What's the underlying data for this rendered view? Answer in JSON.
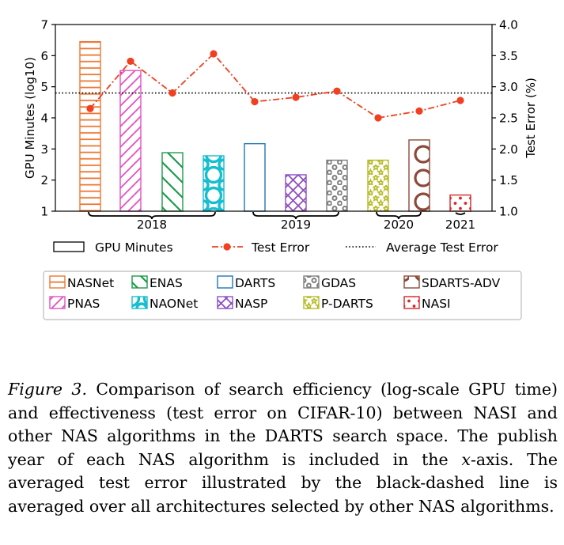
{
  "chart_data": {
    "type": "bar",
    "categories": [
      "NASNet",
      "PNAS",
      "ENAS",
      "NAONet",
      "DARTS",
      "NASP",
      "GDAS",
      "P-DARTS",
      "SDARTS-ADV",
      "NASI"
    ],
    "series": [
      {
        "name": "GPU Minutes",
        "axis": "left",
        "values": [
          6.45,
          5.52,
          2.88,
          2.78,
          3.17,
          2.17,
          2.64,
          2.64,
          3.29,
          1.52
        ]
      },
      {
        "name": "Test Error",
        "axis": "right",
        "type": "line",
        "values": [
          2.65,
          3.41,
          2.9,
          3.53,
          2.76,
          2.83,
          2.93,
          2.5,
          2.61,
          2.78
        ]
      }
    ],
    "average_test_error": 2.9,
    "average_label": "Average Test Error",
    "ylabel": "GPU Minutes (log10)",
    "y2label": "Test Error (%)",
    "ylim": [
      1,
      7
    ],
    "y2lim": [
      1.0,
      4.0
    ],
    "yticks": [
      "1",
      "2",
      "3",
      "4",
      "5",
      "6",
      "7"
    ],
    "y2ticks": [
      "1.0",
      "1.5",
      "2.0",
      "2.5",
      "3.0",
      "3.5",
      "4.0"
    ],
    "year_groups": [
      {
        "label": "2018",
        "from": 0,
        "to": 3
      },
      {
        "label": "2019",
        "from": 4,
        "to": 6
      },
      {
        "label": "2020",
        "from": 7,
        "to": 8
      },
      {
        "label": "2021",
        "from": 9,
        "to": 9
      }
    ],
    "colors": {
      "NASNet": "#ee7733",
      "PNAS": "#e44fc2",
      "ENAS": "#1e9a4a",
      "NAONet": "#17becf",
      "DARTS": "#1f77b4",
      "NASP": "#8c4fc0",
      "GDAS": "#7f7f7f",
      "P-DARTS": "#b8bc2a",
      "SDARTS-ADV": "#8c4a3a",
      "NASI": "#d62728",
      "line": "#f04020"
    },
    "patterns": {
      "NASNet": "horizontal-lines",
      "PNAS": "diagonal-lines",
      "ENAS": "back-diagonal-lines",
      "NAONet": "large-circles",
      "DARTS": "none",
      "NASP": "crosshatch",
      "GDAS": "small-circles",
      "P-DARTS": "stars",
      "SDARTS-ADV": "big-rings",
      "NASI": "dots"
    },
    "legend_top": [
      {
        "label": "GPU Minutes",
        "kind": "box"
      },
      {
        "label": "Test Error",
        "kind": "line-marker"
      },
      {
        "label": "Average Test Error",
        "kind": "dotted"
      }
    ]
  },
  "caption": {
    "label": "Figure 3.",
    "text_1": " Comparison of search efficiency (log-scale GPU time) and effectiveness (test error on CIFAR-10) between NASI and other NAS algorithms in the DARTS search space. The publish year of each NAS algorithm is included in the ",
    "math_x": "x",
    "text_2": "-axis. The averaged test error illustrated by the black-dashed line is averaged over all architectures selected by other NAS algorithms."
  }
}
